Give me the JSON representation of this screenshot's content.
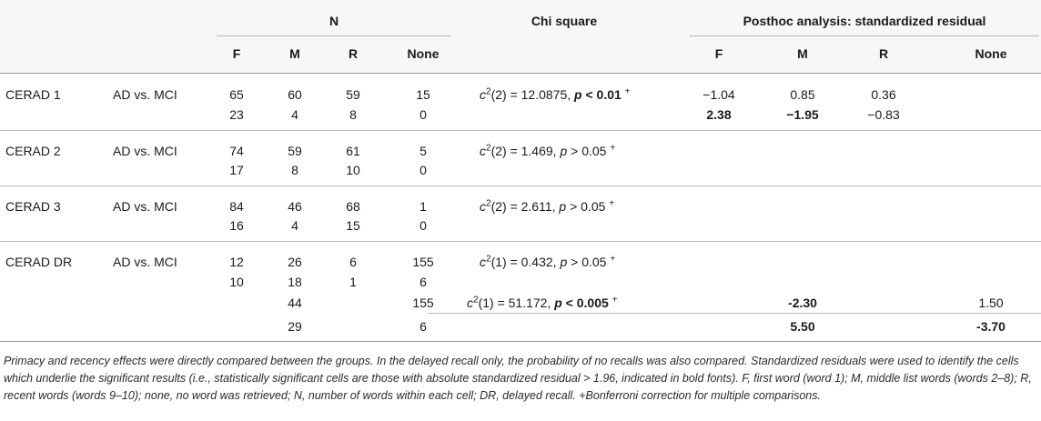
{
  "header": {
    "n_group": "N",
    "chi_group": "Chi square",
    "posthoc_group": "Posthoc analysis: standardized residual",
    "n_cols": [
      "F",
      "M",
      "R",
      "None"
    ],
    "posthoc_cols": [
      "F",
      "M",
      "R",
      "None"
    ]
  },
  "rows": [
    {
      "label": "CERAD 1",
      "comparison": "AD vs. MCI",
      "n_line1": [
        "65",
        "60",
        "59",
        "15"
      ],
      "n_line2": [
        "23",
        "4",
        "8",
        "0"
      ],
      "chi_prefix": "c",
      "chi_df": "2",
      "chi_eq": "(2) = 12.0875, ",
      "chi_p": "p",
      "chi_pval": " < 0.01",
      "chi_sup": "+",
      "post_line1": [
        "−1.04",
        "0.85",
        "0.36",
        ""
      ],
      "post_line2": [
        "2.38",
        "−1.95",
        "−0.83",
        ""
      ]
    },
    {
      "label": "CERAD 2",
      "comparison": "AD vs. MCI",
      "n_line1": [
        "74",
        "59",
        "61",
        "5"
      ],
      "n_line2": [
        "17",
        "8",
        "10",
        "0"
      ],
      "chi_prefix": "c",
      "chi_df": "2",
      "chi_eq": "(2) = 1.469, ",
      "chi_p": "p",
      "chi_pval": " > 0.05",
      "chi_sup": "+"
    },
    {
      "label": "CERAD 3",
      "comparison": "AD vs. MCI",
      "n_line1": [
        "84",
        "46",
        "68",
        "1"
      ],
      "n_line2": [
        "16",
        "4",
        "15",
        "0"
      ],
      "chi_prefix": "c",
      "chi_df": "2",
      "chi_eq": "(2) = 2.611, ",
      "chi_p": "p",
      "chi_pval": " > 0.05",
      "chi_sup": "+"
    },
    {
      "label": "CERAD DR",
      "comparison": "AD vs. MCI",
      "n_line1": [
        "12",
        "26",
        "6",
        "155"
      ],
      "n_line2": [
        "10",
        "18",
        "1",
        "6"
      ],
      "n_line3": [
        "",
        "44",
        "",
        "155"
      ],
      "n_line4": [
        "",
        "29",
        "",
        "6"
      ],
      "chi_prefix": "c",
      "chi_df": "2",
      "chi_eq": "(1) = 0.432, ",
      "chi_p": "p",
      "chi_pval": " > 0.05",
      "chi_sup": "+",
      "chi2_prefix": "c",
      "chi2_df": "2",
      "chi2_eq": "(1) = 51.172, ",
      "chi2_p": "p",
      "chi2_pval": " < 0.005",
      "chi2_sup": "+",
      "post_line3": [
        "",
        "-2.30",
        "",
        "1.50"
      ],
      "post_line4": [
        "",
        "5.50",
        "",
        "-3.70"
      ]
    }
  ],
  "footnote": "Primacy and recency effects were directly compared between the groups. In the delayed recall only, the probability of no recalls was also compared. Standardized residuals were used to identify the cells which underlie the significant results (i.e., statistically significant cells are those with absolute standardized residual > 1.96, indicated in bold fonts). F, first word (word 1); M, middle list words (words 2–8); R, recent words (words 9–10); none, no word was retrieved; N, number of words within each cell; DR, delayed recall. +Bonferroni correction for multiple comparisons."
}
